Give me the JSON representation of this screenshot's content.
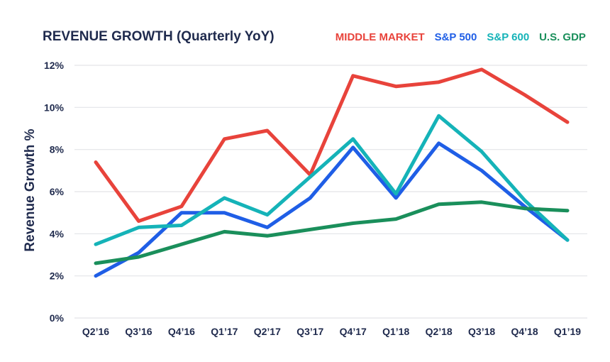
{
  "chart_data": {
    "type": "line",
    "title": "REVENUE GROWTH (Quarterly YoY)",
    "xlabel": "",
    "ylabel": "Revenue Growth %",
    "categories": [
      "Q2’16",
      "Q3’16",
      "Q4’16",
      "Q1’17",
      "Q2’17",
      "Q3’17",
      "Q4’17",
      "Q1’18",
      "Q2’18",
      "Q3’18",
      "Q4’18",
      "Q1’19"
    ],
    "y_ticks": [
      0,
      2,
      4,
      6,
      8,
      10,
      12
    ],
    "y_tick_labels": [
      "0%",
      "2%",
      "4%",
      "6%",
      "8%",
      "10%",
      "12%"
    ],
    "ylim": [
      0,
      12
    ],
    "grid": true,
    "legend_position": "top-right",
    "series": [
      {
        "name": "MIDDLE MARKET",
        "color": "#e8433b",
        "values": [
          7.4,
          4.6,
          5.3,
          8.5,
          8.9,
          6.8,
          11.5,
          11.0,
          11.2,
          11.8,
          10.6,
          9.3
        ]
      },
      {
        "name": "S&P 500",
        "color": "#1f5ee6",
        "values": [
          2.0,
          3.1,
          5.0,
          5.0,
          4.3,
          5.7,
          8.1,
          5.7,
          8.3,
          7.0,
          5.3,
          3.7
        ]
      },
      {
        "name": "S&P 600",
        "color": "#15b3b8",
        "values": [
          3.5,
          4.3,
          4.4,
          5.7,
          4.9,
          6.7,
          8.5,
          5.9,
          9.6,
          7.9,
          5.6,
          3.7
        ]
      },
      {
        "name": "U.S. GDP",
        "color": "#1a8f5b",
        "values": [
          2.6,
          2.9,
          3.5,
          4.1,
          3.9,
          4.2,
          4.5,
          4.7,
          5.4,
          5.5,
          5.2,
          5.1
        ]
      }
    ]
  }
}
